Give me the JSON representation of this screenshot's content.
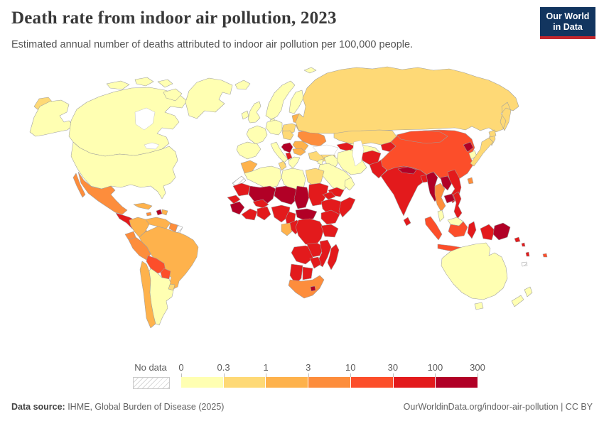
{
  "header": {
    "title": "Death rate from indoor air pollution, 2023",
    "subtitle": "Estimated annual number of deaths attributed to indoor air pollution per 100,000 people.",
    "logo": {
      "line1": "Our World",
      "line2": "in Data",
      "bg_color": "#12355f",
      "stripe_color": "#c1272d"
    }
  },
  "legend": {
    "no_data_label": "No data",
    "ticks": [
      "0",
      "0.3",
      "1",
      "3",
      "10",
      "30",
      "100",
      "300"
    ],
    "bin_colors": [
      "#FFFFB2",
      "#FED976",
      "#FEB24C",
      "#FD8D3C",
      "#FC4E2A",
      "#E31A1C",
      "#B10026"
    ]
  },
  "footer": {
    "source_label": "Data source:",
    "source_text": " IHME, Global Burden of Disease (2025)",
    "link_text": "OurWorldinData.org/indoor-air-pollution | CC BY"
  },
  "map": {
    "border_color": "#9e9e9e",
    "regions": {
      "chukotka-russia-tip": "#FED976",
      "alaska": "#FFFFB2",
      "canada": "#FFFFB2",
      "arctic-island-1": "#FFFFB2",
      "arctic-island-2": "#FFFFB2",
      "arctic-island-3": "#FFFFB2",
      "baffin": "#FFFFB2",
      "greenland": "#FFFFB2",
      "iceland": "#FFFFB2",
      "usa": "#FFFFB2",
      "mexico": "#FD8D3C",
      "guatemala-honduras-nicaragua": "#E31A1C",
      "costa-rica-panama": "#FD8D3C",
      "cuba": "#FEB24C",
      "jamaica": "#FD8D3C",
      "haiti": "#B10026",
      "dominican-republic": "#FEB24C",
      "colombia": "#FEB24C",
      "venezuela": "#FEB24C",
      "guyana-suriname": "#FD8D3C",
      "french-guiana": "no-data",
      "ecuador": "#FD8D3C",
      "peru": "#FD8D3C",
      "brazil": "#FEB24C",
      "bolivia": "#FC4E2A",
      "paraguay": "#FC4E2A",
      "uruguay": "#FED976",
      "chile": "#FEB24C",
      "argentina": "#FFFFB2",
      "uk": "#FFFFB2",
      "ireland": "#FFFFB2",
      "norway-sweden": "#FFFFB2",
      "finland": "#FFFFB2",
      "denmark": "#FFFFB2",
      "svalbard": "#FFFFB2",
      "baltics": "#FEB24C",
      "belarus": "#FEB24C",
      "poland": "#FED976",
      "germany-central-europe": "#FFFFB2",
      "france": "#FFFFB2",
      "iberia": "#FFFFB2",
      "italy": "#FFFFB2",
      "czech-hungary": "#FED976",
      "ukraine": "#FD8D3C",
      "romania": "#FEB24C",
      "serbia-bosnia": "#B10026",
      "bulgaria": "#FEB24C",
      "albania-macedonia": "#E31A1C",
      "greece": "#FFFFB2",
      "russia": "#FED976",
      "kazakhstan": "#FED976",
      "uzbek-turkmen": "#FFFFB2",
      "kyrgyz-tajik": "#E31A1C",
      "afghanistan": "#E31A1C",
      "pakistan": "#E31A1C",
      "iran": "#FFFFB2",
      "iraq": "#FFFFB2",
      "syria": "#FED976",
      "jordan-israel": "#FFFFB2",
      "turkey": "#FED976",
      "caucasus": "#E31A1C",
      "saudi-arabia": "#FFFFB2",
      "yemen": "#E31A1C",
      "oman": "#FFFFB2",
      "morocco": "#FEB24C",
      "western-sahara": "no-data",
      "algeria": "#FFFFB2",
      "tunisia": "#FED976",
      "libya": "#FFFFB2",
      "egypt": "#FED976",
      "mauritania": "#E31A1C",
      "mali": "#B10026",
      "niger": "#B10026",
      "chad": "#B10026",
      "sudan": "#E31A1C",
      "eritrea-djibouti": "#E31A1C",
      "ethiopia": "#E31A1C",
      "somalia": "#E31A1C",
      "senegal-gambia": "#E31A1C",
      "guinea-sierra-leone": "#B10026",
      "liberia-cote-divoire": "#E31A1C",
      "ghana-togo-benin": "#E31A1C",
      "burkina-faso": "#E31A1C",
      "nigeria": "#E31A1C",
      "cameroon": "#E31A1C",
      "central-african-republic": "#B10026",
      "gabon-eq-guinea": "#FEB24C",
      "congo": "#E31A1C",
      "drc": "#E31A1C",
      "uganda-kenya": "#E31A1C",
      "tanzania": "#E31A1C",
      "angola": "#E31A1C",
      "zambia": "#E31A1C",
      "mozambique-malawi": "#E31A1C",
      "zimbabwe": "#E31A1C",
      "namibia": "#E31A1C",
      "botswana": "#E31A1C",
      "south-africa": "#FD8D3C",
      "lesotho": "#B10026",
      "madagascar": "#E31A1C",
      "india": "#E31A1C",
      "nepal": "#B10026",
      "bangladesh": "#E31A1C",
      "sri-lanka": "#E31A1C",
      "myanmar": "#B10026",
      "thailand": "#FD8D3C",
      "laos": "#B10026",
      "vietnam": "#E31A1C",
      "cambodia": "#B10026",
      "malaysia-peninsula": "#FFFFB2",
      "china": "#FC4E2A",
      "mongolia": "#FC4E2A",
      "taiwan": "#FD8D3C",
      "north-korea": "#B10026",
      "south-korea": "#FFFFB2",
      "japan": "#FED976",
      "philippines": "#E31A1C",
      "indonesia-sumatra": "#FC4E2A",
      "java": "#FC4E2A",
      "borneo-malaysia": "#FFFFB2",
      "borneo-indonesia": "#FC4E2A",
      "sulawesi": "#E31A1C",
      "indonesia-papua": "#E31A1C",
      "papua-new-guinea": "#B10026",
      "solomon-islands": "#E31A1C",
      "vanuatu": "#E31A1C",
      "fiji": "#FC4E2A",
      "new-caledonia": "no-data",
      "australia": "#FFFFB2",
      "tasmania": "#FFFFB2",
      "new-zealand": "#FFFFB2"
    }
  }
}
